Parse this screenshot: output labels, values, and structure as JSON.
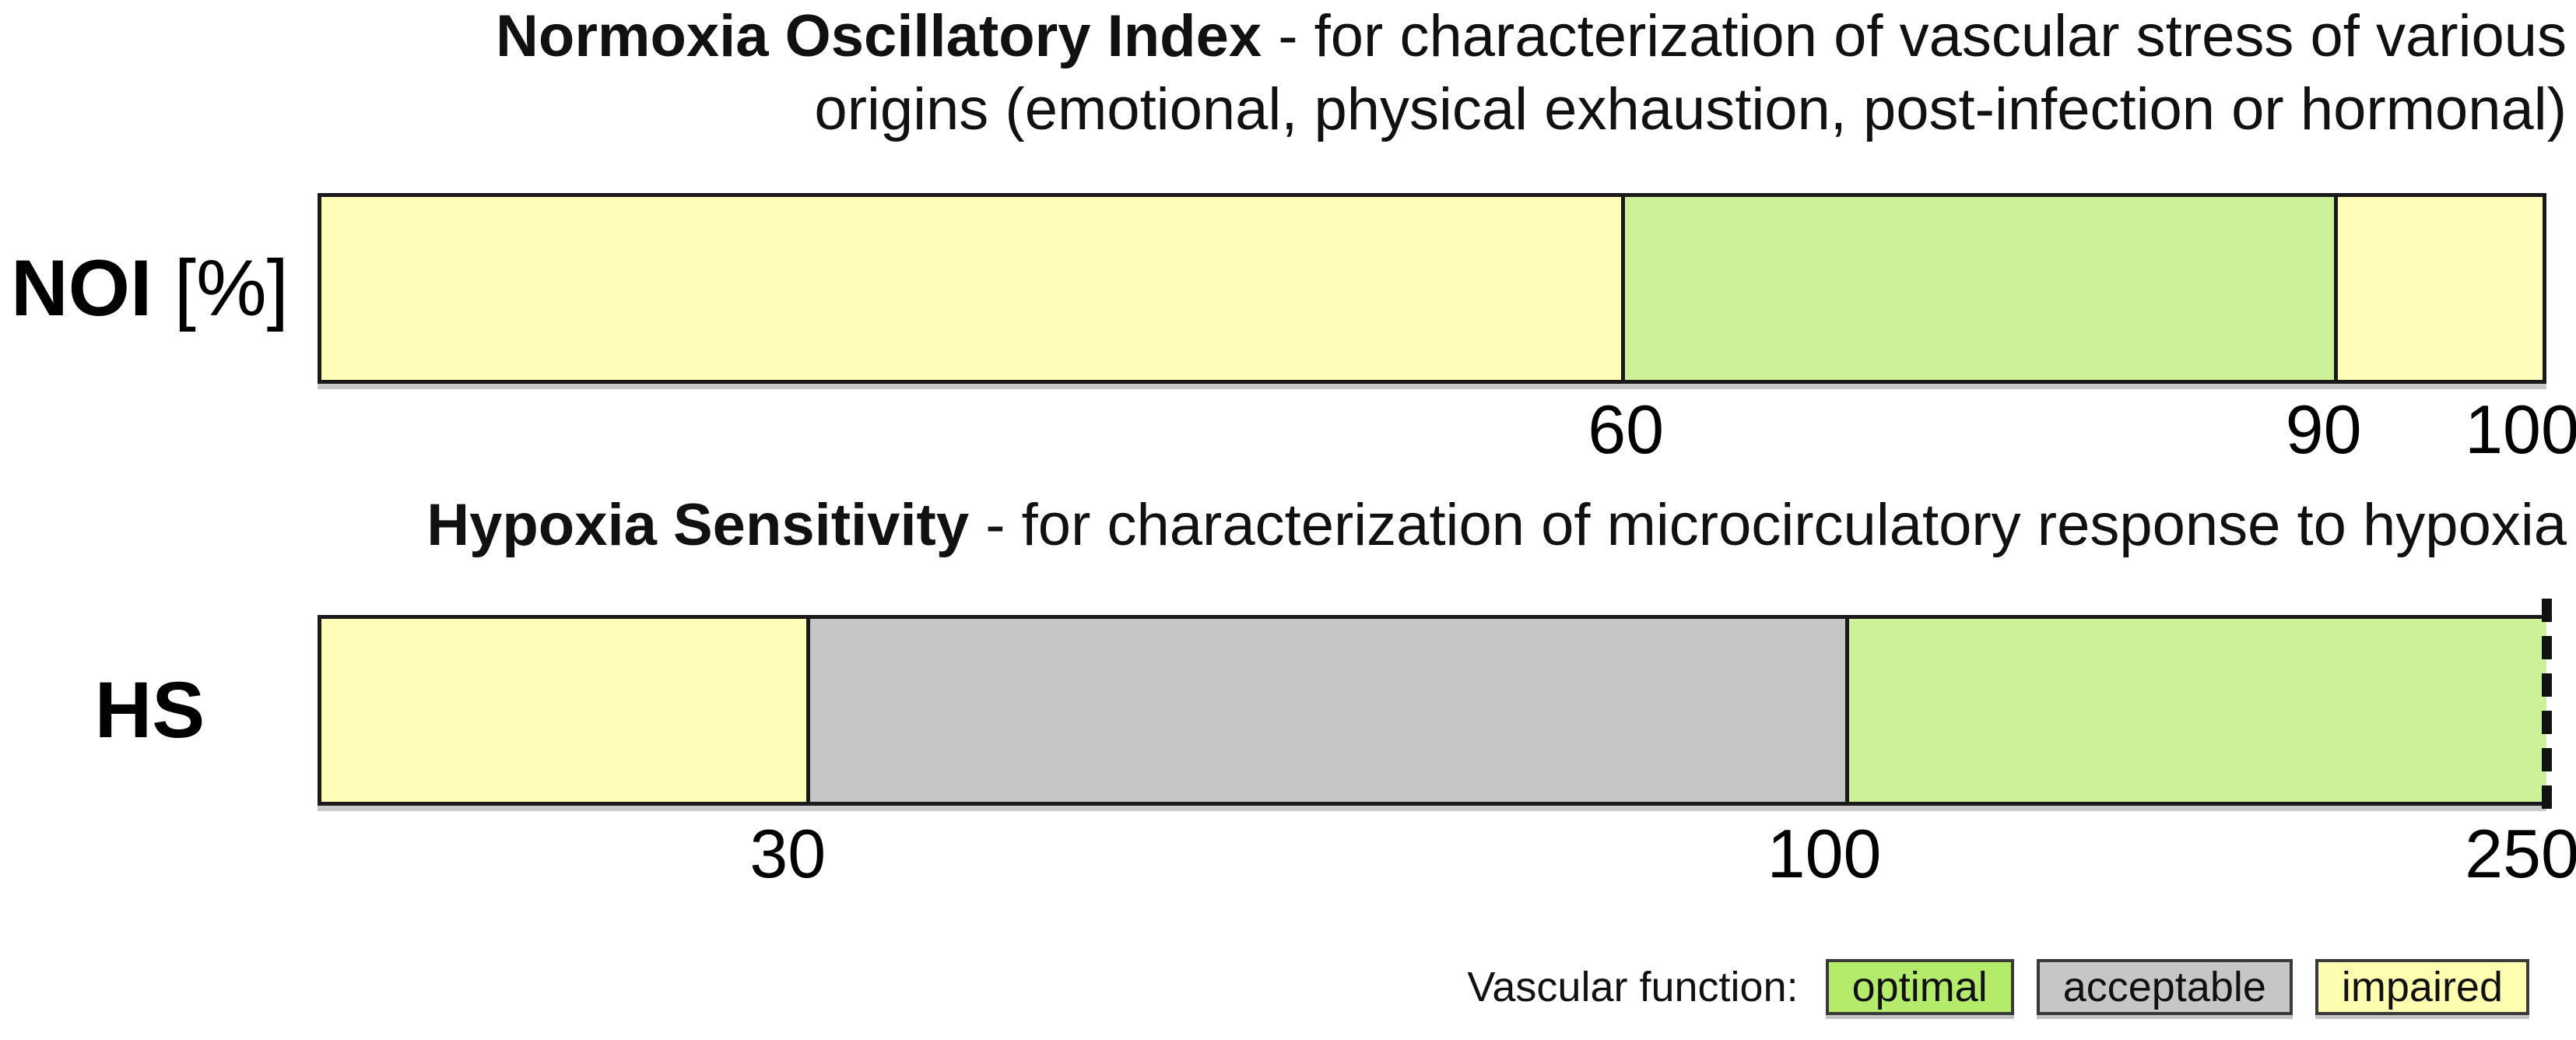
{
  "figure": {
    "background": "#ffffff",
    "border_color": "#1a1a1a"
  },
  "chart_data": [
    {
      "type": "bar",
      "id": "noi",
      "title_bold": "Normoxia Oscillatory Index",
      "title_regular": " - for characterization of vascular stress of various",
      "title_line2": "origins (emotional, physical exhaustion, post-infection or hormonal)",
      "row_label_bold": "NOI",
      "row_label_regular": " [%]",
      "axis_range": [
        0,
        100
      ],
      "right_edge_style": "solid",
      "segments": [
        {
          "from": 0,
          "to": 60,
          "zone": "impaired",
          "color": "#FFFDB8",
          "width_pct": 58.5
        },
        {
          "from": 60,
          "to": 90,
          "zone": "optimal",
          "color": "#CCF199",
          "width_pct": 32.1
        },
        {
          "from": 90,
          "to": 100,
          "zone": "impaired",
          "color": "#FFFDB8",
          "width_pct": 9.4
        }
      ],
      "ticks": [
        {
          "label": "60",
          "value": 60,
          "pos_pct": 58.7
        },
        {
          "label": "90",
          "value": 90,
          "pos_pct": 90.0
        },
        {
          "label": "100",
          "value": 100,
          "pos_pct": 98.9
        }
      ]
    },
    {
      "type": "bar",
      "id": "hs",
      "title_bold": "Hypoxia Sensitivity",
      "title_regular": " - for characterization of microcirculatory response to hypoxia",
      "title_line2": "",
      "row_label_bold": "HS",
      "row_label_regular": "",
      "axis_range": [
        0,
        250
      ],
      "right_edge_style": "dashed",
      "segments": [
        {
          "from": 0,
          "to": 30,
          "zone": "impaired",
          "color": "#FFFDB8",
          "width_pct": 21.8
        },
        {
          "from": 30,
          "to": 100,
          "zone": "acceptable",
          "color": "#C6C6C6",
          "width_pct": 46.7
        },
        {
          "from": 100,
          "to": 250,
          "zone": "optimal",
          "color": "#CCF199",
          "width_pct": 31.5
        }
      ],
      "ticks": [
        {
          "label": "30",
          "value": 30,
          "pos_pct": 21.1
        },
        {
          "label": "100",
          "value": 100,
          "pos_pct": 67.6
        },
        {
          "label": "250",
          "value": 250,
          "pos_pct": 98.9
        }
      ]
    }
  ],
  "legend": {
    "label": "Vascular function:",
    "items": [
      {
        "label": "optimal",
        "color": "#B5EB6B"
      },
      {
        "label": "acceptable",
        "color": "#C6C6C6"
      },
      {
        "label": "impaired",
        "color": "#FFFDB0"
      }
    ]
  }
}
